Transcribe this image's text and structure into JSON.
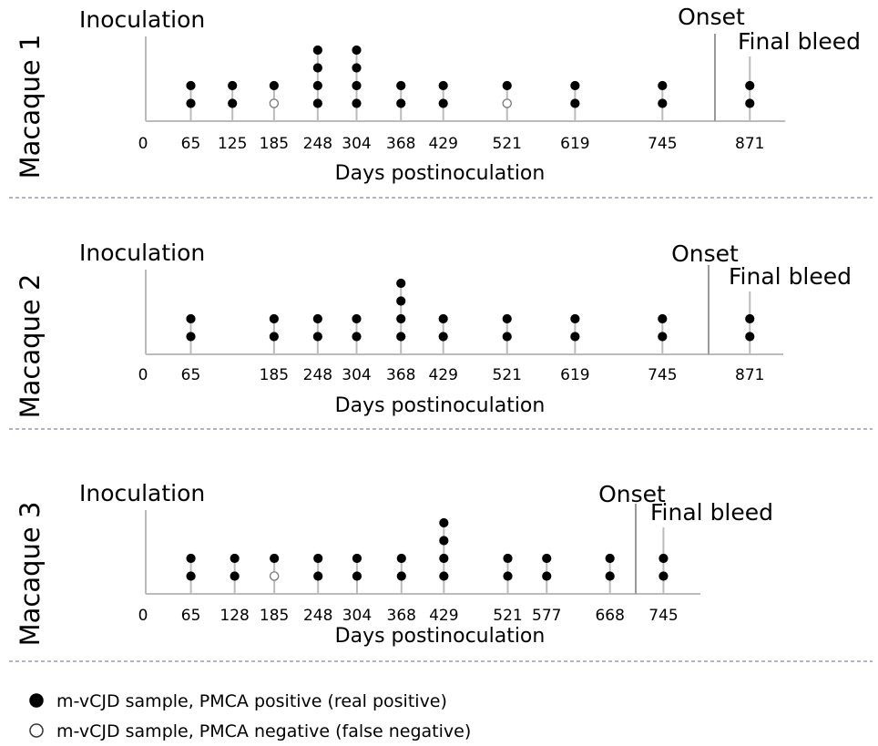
{
  "chart_data": [
    {
      "type": "scatter",
      "macaque": "Macaque 1",
      "xlabel": "Days postinoculation",
      "inoculation_label": "Inoculation",
      "onset_label": "Onset",
      "final_bleed_label": "Final bleed",
      "onset_day": 815,
      "axis_range": [
        0,
        900
      ],
      "ticks": [
        0,
        65,
        125,
        185,
        248,
        304,
        368,
        429,
        521,
        619,
        745,
        871
      ],
      "samples": [
        {
          "day": 65,
          "results": [
            "positive",
            "positive"
          ]
        },
        {
          "day": 125,
          "results": [
            "positive",
            "positive"
          ]
        },
        {
          "day": 185,
          "results": [
            "negative",
            "positive"
          ]
        },
        {
          "day": 248,
          "results": [
            "positive",
            "positive",
            "positive",
            "positive"
          ]
        },
        {
          "day": 304,
          "results": [
            "positive",
            "positive",
            "positive",
            "positive"
          ]
        },
        {
          "day": 368,
          "results": [
            "positive",
            "positive"
          ]
        },
        {
          "day": 429,
          "results": [
            "positive",
            "positive"
          ]
        },
        {
          "day": 521,
          "results": [
            "negative",
            "positive"
          ]
        },
        {
          "day": 619,
          "results": [
            "positive",
            "positive"
          ]
        },
        {
          "day": 745,
          "results": [
            "positive",
            "positive"
          ]
        },
        {
          "day": 871,
          "results": [
            "positive",
            "positive"
          ]
        }
      ]
    },
    {
      "type": "scatter",
      "macaque": "Macaque 2",
      "xlabel": "Days postinoculation",
      "inoculation_label": "Inoculation",
      "onset_label": "Onset",
      "final_bleed_label": "Final bleed",
      "onset_day": 815,
      "axis_range": [
        0,
        900
      ],
      "ticks": [
        0,
        65,
        185,
        248,
        304,
        368,
        429,
        521,
        619,
        745,
        871
      ],
      "samples": [
        {
          "day": 65,
          "results": [
            "positive",
            "positive"
          ]
        },
        {
          "day": 185,
          "results": [
            "positive",
            "positive"
          ]
        },
        {
          "day": 248,
          "results": [
            "positive",
            "positive"
          ]
        },
        {
          "day": 304,
          "results": [
            "positive",
            "positive"
          ]
        },
        {
          "day": 368,
          "results": [
            "positive",
            "positive",
            "positive",
            "positive"
          ]
        },
        {
          "day": 429,
          "results": [
            "positive",
            "positive"
          ]
        },
        {
          "day": 521,
          "results": [
            "positive",
            "positive"
          ]
        },
        {
          "day": 619,
          "results": [
            "positive",
            "positive"
          ]
        },
        {
          "day": 745,
          "results": [
            "positive",
            "positive"
          ]
        },
        {
          "day": 871,
          "results": [
            "positive",
            "positive"
          ]
        }
      ]
    },
    {
      "type": "scatter",
      "macaque": "Macaque 3",
      "xlabel": "Days postinoculation",
      "inoculation_label": "Inoculation",
      "onset_label": "Onset",
      "final_bleed_label": "Final bleed",
      "onset_day": 706,
      "axis_range": [
        0,
        800
      ],
      "ticks": [
        0,
        65,
        128,
        185,
        248,
        304,
        368,
        429,
        521,
        577,
        668,
        745
      ],
      "samples": [
        {
          "day": 65,
          "results": [
            "positive",
            "positive"
          ]
        },
        {
          "day": 128,
          "results": [
            "positive",
            "positive"
          ]
        },
        {
          "day": 185,
          "results": [
            "negative",
            "positive"
          ]
        },
        {
          "day": 248,
          "results": [
            "positive",
            "positive"
          ]
        },
        {
          "day": 304,
          "results": [
            "positive",
            "positive"
          ]
        },
        {
          "day": 368,
          "results": [
            "positive",
            "positive"
          ]
        },
        {
          "day": 429,
          "results": [
            "positive",
            "positive",
            "positive",
            "positive"
          ]
        },
        {
          "day": 521,
          "results": [
            "positive",
            "positive"
          ]
        },
        {
          "day": 577,
          "results": [
            "positive",
            "positive"
          ]
        },
        {
          "day": 668,
          "results": [
            "positive",
            "positive"
          ]
        },
        {
          "day": 745,
          "results": [
            "positive",
            "positive"
          ]
        }
      ]
    }
  ],
  "legend": [
    {
      "marker": "filled",
      "label": "m-vCJD sample, PMCA positive (real positive)"
    },
    {
      "marker": "open",
      "label": "m-vCJD sample, PMCA negative (false negative)"
    }
  ],
  "colors": {
    "marker": "#000000",
    "stem": "#bbbbbb",
    "axis": "#bbbbbb",
    "onset_line": "#999999",
    "divider": "#9999bb"
  }
}
